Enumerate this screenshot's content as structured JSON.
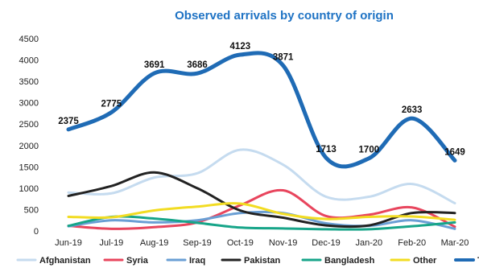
{
  "chart_data": {
    "type": "line",
    "title": "Observed arrivals by country of origin",
    "categories": [
      "Jun-19",
      "Jul-19",
      "Aug-19",
      "Sep-19",
      "Oct-19",
      "Nov-19",
      "Dec-19",
      "Jan-20",
      "Feb-20",
      "Mar-20"
    ],
    "ylim": [
      0,
      4500
    ],
    "yticks": [
      0,
      500,
      1000,
      1500,
      2000,
      2500,
      3000,
      3500,
      4000,
      4500
    ],
    "grid": false,
    "legend": "bottom",
    "smooth": true,
    "series": [
      {
        "name": "Afghanistan",
        "color": "#c5dbef",
        "width": 3,
        "values": [
          900,
          880,
          1250,
          1350,
          1900,
          1550,
          800,
          800,
          1100,
          650
        ]
      },
      {
        "name": "Syria",
        "color": "#e8455d",
        "width": 3,
        "values": [
          120,
          50,
          90,
          200,
          600,
          950,
          350,
          380,
          550,
          100
        ]
      },
      {
        "name": "Iraq",
        "color": "#6a9fd4",
        "width": 3,
        "values": [
          110,
          250,
          200,
          250,
          420,
          420,
          180,
          120,
          250,
          50
        ]
      },
      {
        "name": "Pakistan",
        "color": "#222222",
        "width": 3,
        "values": [
          820,
          1050,
          1370,
          1000,
          480,
          310,
          130,
          130,
          420,
          420
        ]
      },
      {
        "name": "Bangladesh",
        "color": "#17a589",
        "width": 3,
        "values": [
          120,
          330,
          290,
          190,
          80,
          60,
          40,
          40,
          110,
          200
        ]
      },
      {
        "name": "Other",
        "color": "#f2dc22",
        "width": 3,
        "values": [
          330,
          320,
          480,
          570,
          640,
          400,
          280,
          330,
          340,
          260
        ]
      },
      {
        "name": "Total",
        "color": "#1f6bb5",
        "width": 5,
        "values": [
          2375,
          2775,
          3691,
          3686,
          4123,
          3871,
          1713,
          1700,
          2633,
          1649
        ],
        "labels": [
          "2375",
          "2775",
          "3691",
          "3686",
          "4123",
          "3871",
          "1713",
          "1700",
          "2633",
          "1649"
        ]
      }
    ]
  }
}
